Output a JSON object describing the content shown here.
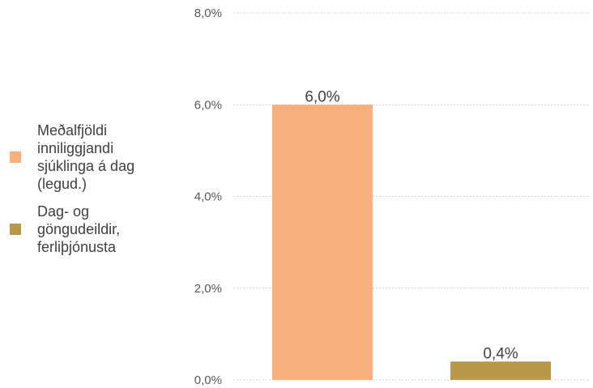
{
  "chart_data": {
    "type": "bar",
    "categories": [
      "Meðalfjöldi inniliggjandi sjúklinga á dag (legud.)",
      "Dag- og göngudeildir, ferliþjónusta"
    ],
    "values": [
      6.0,
      0.4
    ],
    "value_labels": [
      "6,0%",
      "0,4%"
    ],
    "colors": [
      "#F8AF7B",
      "#B8974A"
    ],
    "ylim": [
      0,
      8
    ],
    "yticks": [
      {
        "value": 0,
        "label": "0,0%"
      },
      {
        "value": 2,
        "label": "2,0%"
      },
      {
        "value": 4,
        "label": "4,0%"
      },
      {
        "value": 6,
        "label": "6,0%"
      },
      {
        "value": 8,
        "label": "8,0%"
      }
    ],
    "grid": true,
    "legend_position": "left"
  },
  "legend": [
    {
      "label": "Meðalfjöldi inniliggjandi sjúklinga á dag (legud.)",
      "color": "#F8AF7B"
    },
    {
      "label": "Dag- og göngudeildir, ferliþjónusta",
      "color": "#B8974A"
    }
  ]
}
